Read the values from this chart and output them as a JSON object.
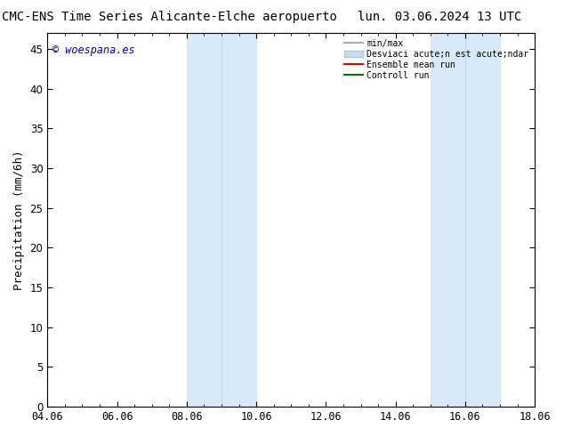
{
  "title_left": "CMC-ENS Time Series Alicante-Elche aeropuerto",
  "title_right": "lun. 03.06.2024 13 UTC",
  "ylabel": "Precipitation (mm/6h)",
  "watermark": "© woespana.es",
  "watermark_color": "#0000cc",
  "background_color": "#ffffff",
  "plot_bg_color": "#ffffff",
  "ylim": [
    0,
    47
  ],
  "yticks": [
    0,
    5,
    10,
    15,
    20,
    25,
    30,
    35,
    40,
    45
  ],
  "xtick_labels": [
    "04.06",
    "06.06",
    "08.06",
    "10.06",
    "12.06",
    "14.06",
    "16.06",
    "18.06"
  ],
  "xtick_positions": [
    0,
    2,
    4,
    6,
    8,
    10,
    12,
    14
  ],
  "xlim": [
    0,
    14
  ],
  "shaded_regions": [
    {
      "xmin": 4.0,
      "xmax": 6.0,
      "color": "#d8eaf8"
    },
    {
      "xmin": 11.0,
      "xmax": 13.0,
      "color": "#d8eaf8"
    }
  ],
  "shaded_inner_lines": [
    {
      "x": 5.0
    },
    {
      "x": 12.0
    }
  ],
  "legend_items": [
    {
      "label": "min/max",
      "color": "#aaaaaa",
      "lw": 1.5,
      "type": "line"
    },
    {
      "label": "Desviaci acute;n est acute;ndar",
      "color": "#c8dcf0",
      "lw": 8,
      "type": "line"
    },
    {
      "label": "Ensemble mean run",
      "color": "#dd0000",
      "lw": 1.5,
      "type": "line"
    },
    {
      "label": "Controll run",
      "color": "#007700",
      "lw": 1.5,
      "type": "line"
    }
  ],
  "title_fontsize": 10,
  "axis_fontsize": 9,
  "tick_fontsize": 8.5
}
